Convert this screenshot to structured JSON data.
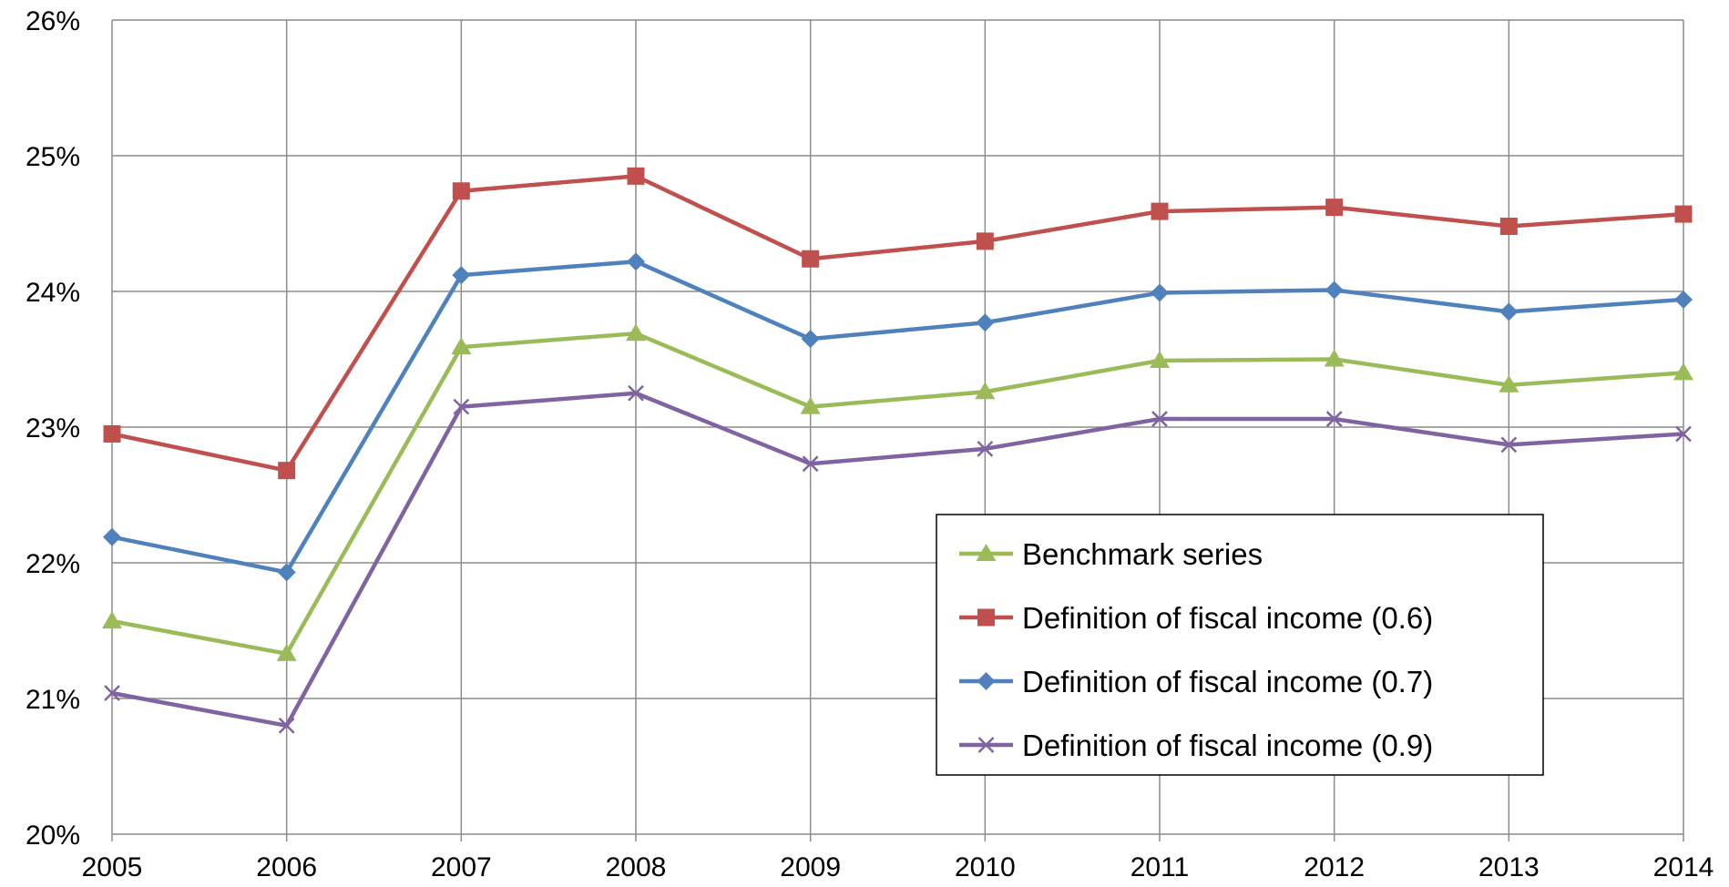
{
  "chart_data": {
    "type": "line",
    "title": "",
    "xlabel": "",
    "ylabel": "",
    "categories": [
      "2005",
      "2006",
      "2007",
      "2008",
      "2009",
      "2010",
      "2011",
      "2012",
      "2013",
      "2014"
    ],
    "ylim": [
      0.2,
      0.26
    ],
    "yticks": [
      0.2,
      0.21,
      0.22,
      0.23,
      0.24,
      0.25,
      0.26
    ],
    "ytick_labels": [
      "20%",
      "21%",
      "22%",
      "23%",
      "24%",
      "25%",
      "26%"
    ],
    "grid": true,
    "legend_position": "inside-lower-right",
    "series": [
      {
        "name": "Benchmark series",
        "color": "#9BBB59",
        "marker": "triangle",
        "values": [
          0.2157,
          0.2133,
          0.2359,
          0.2369,
          0.2315,
          0.2326,
          0.2349,
          0.235,
          0.2331,
          0.234
        ]
      },
      {
        "name": "Definition of fiscal income (0.6)",
        "color": "#C0504D",
        "marker": "square",
        "values": [
          0.2295,
          0.2268,
          0.2474,
          0.2485,
          0.2424,
          0.2437,
          0.2459,
          0.2462,
          0.2448,
          0.2457
        ]
      },
      {
        "name": "Definition of fiscal income (0.7)",
        "color": "#4F81BD",
        "marker": "diamond",
        "values": [
          0.2219,
          0.2193,
          0.2412,
          0.2422,
          0.2365,
          0.2377,
          0.2399,
          0.2401,
          0.2385,
          0.2394
        ]
      },
      {
        "name": "Definition of fiscal income (0.9)",
        "color": "#8064A2",
        "marker": "x",
        "values": [
          0.2104,
          0.208,
          0.2315,
          0.2325,
          0.2273,
          0.2284,
          0.2306,
          0.2306,
          0.2287,
          0.2295
        ]
      }
    ]
  }
}
